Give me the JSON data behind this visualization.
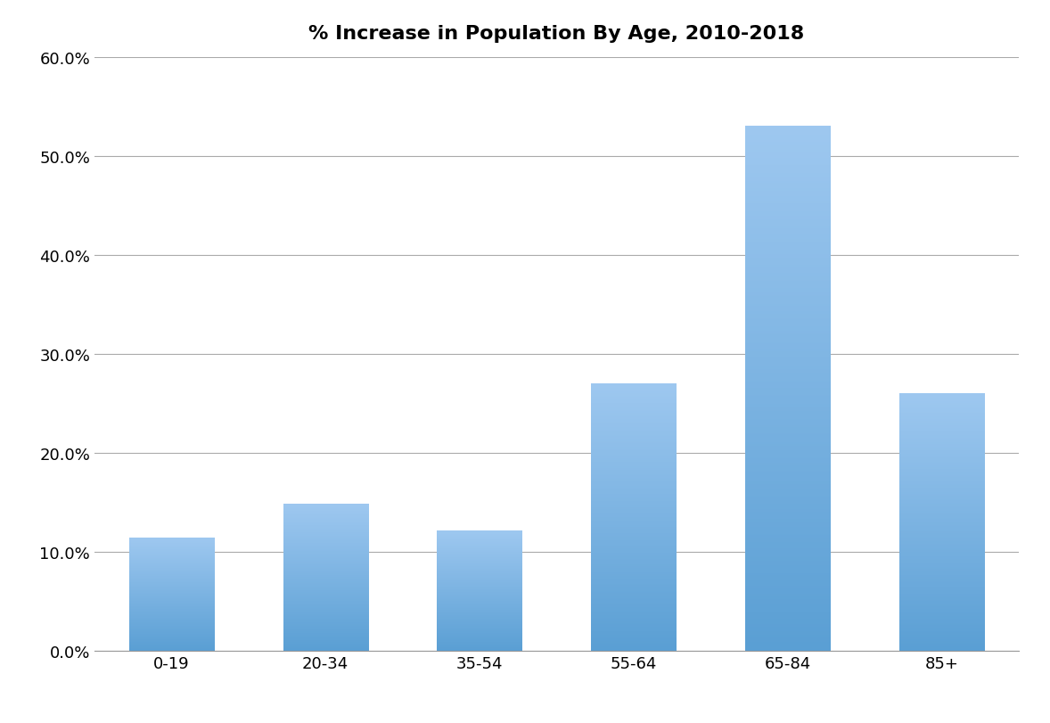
{
  "title": "% Increase in Population By Age, 2010-2018",
  "categories": [
    "0-19",
    "20-34",
    "35-54",
    "55-64",
    "65-84",
    "85+"
  ],
  "values": [
    0.114,
    0.148,
    0.121,
    0.27,
    0.53,
    0.26
  ],
  "bar_color_top": "#9ec8f0",
  "bar_color_bottom": "#5a9fd4",
  "ylim": [
    0,
    0.6
  ],
  "yticks": [
    0.0,
    0.1,
    0.2,
    0.3,
    0.4,
    0.5,
    0.6
  ],
  "ytick_labels": [
    "0.0%",
    "10.0%",
    "20.0%",
    "30.0%",
    "40.0%",
    "50.0%",
    "60.0%"
  ],
  "title_fontsize": 16,
  "tick_fontsize": 13,
  "background_color": "#ffffff",
  "bar_width": 0.55,
  "grid_color": "#aaaaaa"
}
